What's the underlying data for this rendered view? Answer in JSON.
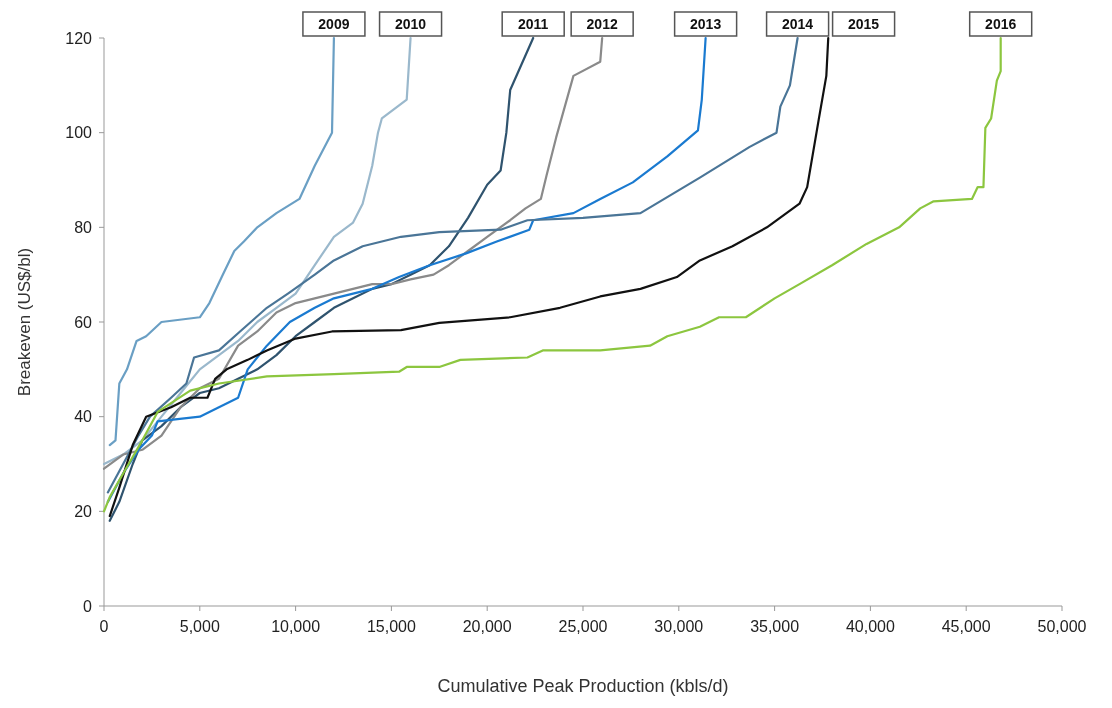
{
  "chart_data": {
    "type": "line",
    "xlabel": "Cumulative Peak Production (kbls/d)",
    "ylabel": "Breakeven (US$/bl)",
    "xlim": [
      0,
      50000
    ],
    "xticks": [
      0,
      {
        "value": 5000,
        "label": "5,000"
      },
      {
        "value": 10000,
        "label": "10,000"
      },
      {
        "value": 15000,
        "label": "15,000"
      },
      {
        "value": 20000,
        "label": "20,000"
      },
      {
        "value": 25000,
        "label": "25,000"
      },
      {
        "value": 30000,
        "label": "30,000"
      },
      {
        "value": 35000,
        "label": "35,000"
      },
      {
        "value": 40000,
        "label": "40,000"
      },
      {
        "value": 45000,
        "label": "45,000"
      },
      {
        "value": 50000,
        "label": "50,000"
      }
    ],
    "ylim": [
      0,
      120
    ],
    "yticks": [
      0,
      20,
      40,
      60,
      80,
      100,
      120
    ],
    "grid": false,
    "marker": "none",
    "line_style": "solid",
    "series": [
      {
        "name": "2009",
        "color": "#6a9fc4",
        "x": [
          300,
          600,
          800,
          1200,
          1700,
          2200,
          3000,
          5000,
          5500,
          6200,
          6800,
          7300,
          8000,
          9000,
          10200,
          11000,
          11900,
          12000
        ],
        "values": [
          34,
          35,
          47,
          50,
          56,
          57,
          60,
          61,
          64,
          70,
          75,
          77,
          80,
          83,
          86,
          93,
          100,
          120
        ]
      },
      {
        "name": "2010",
        "color": "#9ab8cc",
        "x": [
          0,
          1000,
          2000,
          3000,
          4000,
          5000,
          6000,
          7000,
          8000,
          9000,
          10000,
          11000,
          12000,
          13000,
          13500,
          14000,
          14300,
          14500,
          15800,
          16000
        ],
        "values": [
          30,
          32,
          35,
          40,
          45,
          50,
          53,
          56,
          60,
          63,
          66,
          72,
          78,
          81,
          85,
          93,
          100,
          103,
          107,
          120
        ]
      },
      {
        "name": "2011",
        "color": "#2f536e",
        "x": [
          300,
          800,
          1500,
          2000,
          3000,
          4000,
          5000,
          6000,
          7000,
          8000,
          9000,
          10000,
          11000,
          12000,
          13000,
          14000,
          15000,
          16000,
          17000,
          18000,
          19000,
          20000,
          20700,
          21000,
          21200,
          22400
        ],
        "values": [
          18,
          22,
          30,
          35,
          38,
          42,
          45,
          46,
          48,
          50,
          53,
          57,
          60,
          63,
          65,
          67,
          68,
          70,
          72,
          76,
          82,
          89,
          92,
          100,
          109,
          120
        ]
      },
      {
        "name": "2012",
        "color": "#8a8a8a",
        "x": [
          0,
          1000,
          2000,
          3000,
          4000,
          5000,
          6000,
          7000,
          8000,
          9000,
          10000,
          11000,
          12000,
          13000,
          14000,
          15000,
          16000,
          17200,
          18000,
          19000,
          20000,
          21200,
          22000,
          22800,
          23100,
          23600,
          24500,
          25900,
          26000
        ],
        "values": [
          29,
          32,
          33,
          36,
          42,
          46,
          48,
          55,
          58,
          62,
          64,
          65,
          66,
          67,
          68,
          68,
          69,
          70,
          72,
          75,
          78,
          81.5,
          84,
          86,
          91,
          99,
          112,
          115,
          120
        ]
      },
      {
        "name": "2013",
        "color": "#1a7ad0",
        "x": [
          200,
          1000,
          1800,
          2500,
          2800,
          5000,
          6000,
          7000,
          7500,
          8500,
          9700,
          11000,
          12000,
          14000,
          15400,
          17000,
          18900,
          20500,
          22200,
          22400,
          24500,
          25900,
          27600,
          29400,
          31000,
          31200,
          31400
        ],
        "values": [
          22,
          28,
          33,
          36,
          39,
          40,
          42,
          44,
          50,
          55,
          60,
          63,
          65,
          67,
          69.5,
          72,
          74.5,
          77,
          79.5,
          81.5,
          83,
          86,
          89.5,
          95,
          100.5,
          107,
          120
        ]
      },
      {
        "name": "2014",
        "color": "#4a7597",
        "x": [
          200,
          1000,
          1800,
          2400,
          3500,
          4300,
          4700,
          6000,
          7100,
          8500,
          9600,
          11000,
          12000,
          13500,
          15500,
          17500,
          20700,
          22100,
          25000,
          28000,
          31100,
          33700,
          35100,
          35300,
          35800,
          36200
        ],
        "values": [
          24,
          30,
          36,
          40,
          44,
          47,
          52.5,
          54,
          58,
          63,
          66,
          70,
          73,
          76,
          78,
          79,
          79.5,
          81.5,
          82,
          83,
          90.5,
          97,
          100,
          105.5,
          110,
          120
        ]
      },
      {
        "name": "2015",
        "color": "#111111",
        "x": [
          300,
          800,
          1500,
          2200,
          3500,
          4500,
          5400,
          5800,
          6400,
          7500,
          8500,
          10000,
          11900,
          15500,
          17500,
          21200,
          23800,
          25900,
          28000,
          29900,
          31100,
          32800,
          34600,
          36300,
          36700,
          37300,
          37700,
          37800
        ],
        "values": [
          19,
          25,
          34,
          40,
          42,
          44,
          44,
          48,
          50,
          52,
          54,
          56.5,
          58,
          58.3,
          59.8,
          61,
          63,
          65.4,
          67,
          69.5,
          73,
          76,
          80,
          85,
          88.5,
          102.7,
          112,
          120
        ]
      },
      {
        "name": "2016",
        "color": "#8cc63f",
        "x": [
          0,
          300,
          1000,
          2000,
          2800,
          4500,
          6000,
          8500,
          12000,
          15400,
          15800,
          17500,
          18600,
          22100,
          22900,
          25900,
          28500,
          29400,
          31100,
          32100,
          33500,
          35000,
          36300,
          38000,
          39800,
          41500,
          42600,
          43300,
          45300,
          45600,
          45900,
          46000,
          46300,
          46600,
          46800,
          46800
        ],
        "values": [
          20,
          23,
          28,
          35,
          41,
          45.5,
          47,
          48.5,
          49,
          49.5,
          50.5,
          50.5,
          52,
          52.5,
          54,
          54,
          55,
          57,
          59,
          61,
          61,
          65,
          68,
          72,
          76.5,
          80,
          84,
          85.5,
          86,
          88.5,
          88.5,
          101,
          103,
          111,
          113,
          120
        ]
      }
    ]
  }
}
